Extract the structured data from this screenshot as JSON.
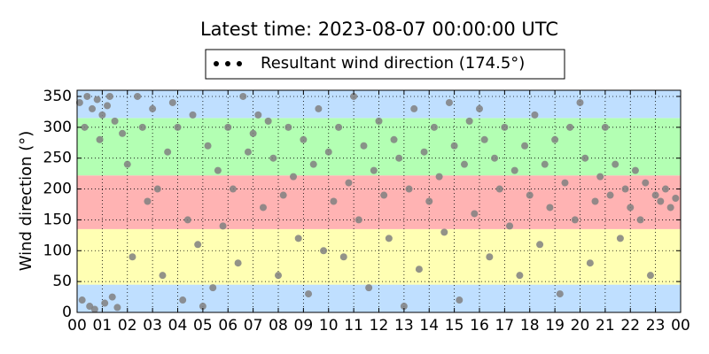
{
  "chart_data": {
    "type": "scatter",
    "title": "Latest time: 2023-08-07 00:00:00 UTC",
    "y_label": "Wind direction (°)",
    "xlim": [
      0,
      24
    ],
    "ylim": [
      0,
      360
    ],
    "xticks": [
      {
        "value": 0,
        "label": "00"
      },
      {
        "value": 1,
        "label": "01"
      },
      {
        "value": 2,
        "label": "02"
      },
      {
        "value": 3,
        "label": "03"
      },
      {
        "value": 4,
        "label": "04"
      },
      {
        "value": 5,
        "label": "05"
      },
      {
        "value": 6,
        "label": "06"
      },
      {
        "value": 7,
        "label": "07"
      },
      {
        "value": 8,
        "label": "08"
      },
      {
        "value": 9,
        "label": "09"
      },
      {
        "value": 10,
        "label": "10"
      },
      {
        "value": 11,
        "label": "11"
      },
      {
        "value": 12,
        "label": "12"
      },
      {
        "value": 13,
        "label": "13"
      },
      {
        "value": 14,
        "label": "14"
      },
      {
        "value": 15,
        "label": "15"
      },
      {
        "value": 16,
        "label": "16"
      },
      {
        "value": 17,
        "label": "17"
      },
      {
        "value": 18,
        "label": "18"
      },
      {
        "value": 19,
        "label": "19"
      },
      {
        "value": 20,
        "label": "20"
      },
      {
        "value": 21,
        "label": "21"
      },
      {
        "value": 22,
        "label": "22"
      },
      {
        "value": 23,
        "label": "23"
      },
      {
        "value": 24,
        "label": "00"
      }
    ],
    "yticks": [
      0,
      50,
      100,
      150,
      200,
      250,
      300,
      350
    ],
    "grid": true,
    "legend": "top",
    "legend_marker_color": "#000000",
    "bands": [
      {
        "from": 0,
        "to": 45,
        "color": "#bfdfff"
      },
      {
        "from": 45,
        "to": 135,
        "color": "#ffffb3"
      },
      {
        "from": 135,
        "to": 222,
        "color": "#ffb3b3"
      },
      {
        "from": 222,
        "to": 315,
        "color": "#b3ffb3"
      },
      {
        "from": 315,
        "to": 360,
        "color": "#bfdfff"
      }
    ],
    "series": [
      {
        "name": "Resultant wind direction (174.5°)",
        "color": "#808080",
        "x": [
          0.1,
          0.2,
          0.3,
          0.4,
          0.5,
          0.6,
          0.7,
          0.8,
          0.9,
          1.0,
          1.1,
          1.2,
          1.3,
          1.4,
          1.5,
          1.6,
          1.8,
          2.0,
          2.2,
          2.4,
          2.6,
          2.8,
          3.0,
          3.2,
          3.4,
          3.6,
          3.8,
          4.0,
          4.2,
          4.4,
          4.6,
          4.8,
          5.0,
          5.2,
          5.4,
          5.6,
          5.8,
          6.0,
          6.2,
          6.4,
          6.6,
          6.8,
          7.0,
          7.2,
          7.4,
          7.6,
          7.8,
          8.0,
          8.2,
          8.4,
          8.6,
          8.8,
          9.0,
          9.2,
          9.4,
          9.6,
          9.8,
          10.0,
          10.2,
          10.4,
          10.6,
          10.8,
          11.0,
          11.2,
          11.4,
          11.6,
          11.8,
          12.0,
          12.2,
          12.4,
          12.6,
          12.8,
          13.0,
          13.2,
          13.4,
          13.6,
          13.8,
          14.0,
          14.2,
          14.4,
          14.6,
          14.8,
          15.0,
          15.2,
          15.4,
          15.6,
          15.8,
          16.0,
          16.2,
          16.4,
          16.6,
          16.8,
          17.0,
          17.2,
          17.4,
          17.6,
          17.8,
          18.0,
          18.2,
          18.4,
          18.6,
          18.8,
          19.0,
          19.2,
          19.4,
          19.6,
          19.8,
          20.0,
          20.2,
          20.4,
          20.6,
          20.8,
          21.0,
          21.2,
          21.4,
          21.6,
          21.8,
          22.0,
          22.2,
          22.4,
          22.6,
          22.8,
          23.0,
          23.2,
          23.4,
          23.6,
          23.8
        ],
        "values": [
          340,
          20,
          300,
          350,
          10,
          330,
          5,
          345,
          280,
          320,
          15,
          335,
          350,
          25,
          310,
          8,
          290,
          240,
          90,
          350,
          300,
          180,
          330,
          200,
          60,
          260,
          340,
          300,
          20,
          150,
          320,
          110,
          10,
          270,
          40,
          230,
          140,
          300,
          200,
          80,
          350,
          260,
          290,
          320,
          170,
          310,
          250,
          60,
          190,
          300,
          220,
          120,
          280,
          30,
          240,
          330,
          100,
          260,
          180,
          300,
          90,
          210,
          350,
          150,
          270,
          40,
          230,
          310,
          190,
          120,
          280,
          250,
          10,
          200,
          330,
          70,
          260,
          180,
          300,
          220,
          130,
          340,
          270,
          20,
          240,
          310,
          160,
          330,
          280,
          90,
          250,
          200,
          300,
          140,
          230,
          60,
          270,
          190,
          320,
          110,
          240,
          170,
          280,
          30,
          210,
          300,
          150,
          340,
          250,
          80,
          180,
          220,
          300,
          190,
          240,
          120,
          200,
          170,
          230,
          150,
          210,
          60,
          190,
          180,
          200,
          170,
          185
        ]
      }
    ]
  }
}
